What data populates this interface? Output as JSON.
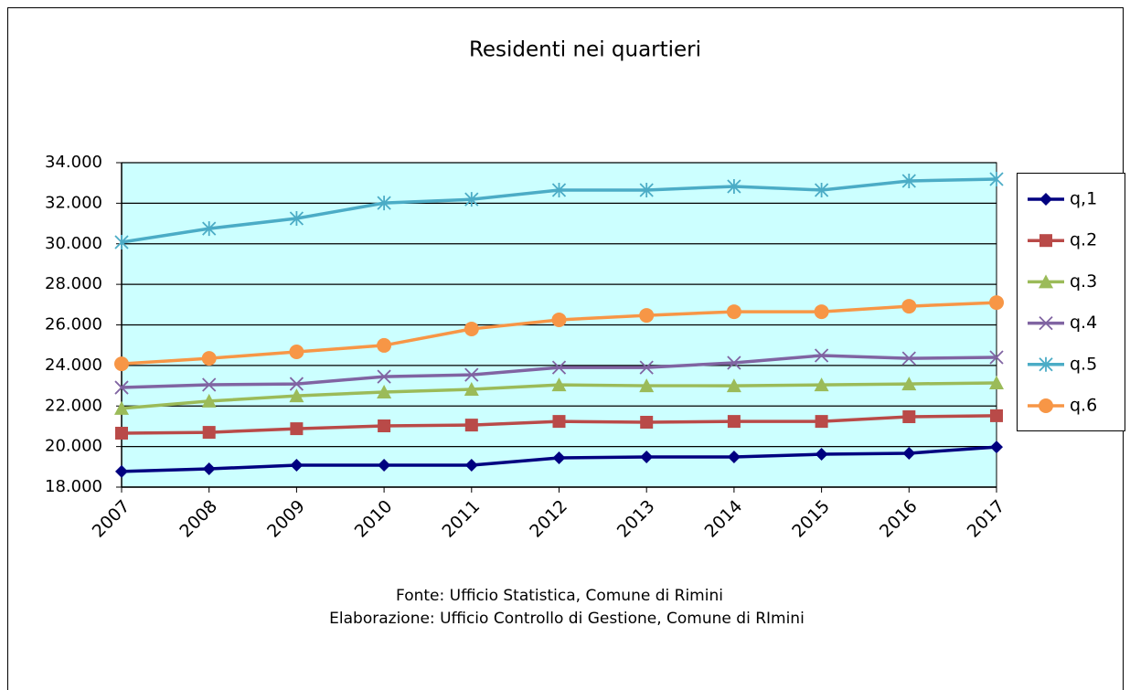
{
  "chart_data": {
    "type": "line",
    "title": "Residenti nei quartieri",
    "categories": [
      "2007",
      "2008",
      "2009",
      "2010",
      "2011",
      "2012",
      "2013",
      "2014",
      "2015",
      "2016",
      "2017"
    ],
    "series": [
      {
        "name": "q,1",
        "color": "#000080",
        "marker": "diamond",
        "values": [
          18770,
          18900,
          19080,
          19080,
          19080,
          19440,
          19490,
          19490,
          19620,
          19670,
          19980
        ]
      },
      {
        "name": "q.2",
        "color": "#b94a48",
        "marker": "square",
        "values": [
          20660,
          20700,
          20880,
          21020,
          21060,
          21240,
          21200,
          21240,
          21240,
          21470,
          21520
        ]
      },
      {
        "name": "q.3",
        "color": "#9bbb59",
        "marker": "triangle",
        "values": [
          21880,
          22240,
          22500,
          22690,
          22820,
          23040,
          23000,
          23000,
          23040,
          23090,
          23140
        ]
      },
      {
        "name": "q.4",
        "color": "#8064a2",
        "marker": "x",
        "values": [
          22910,
          23050,
          23090,
          23450,
          23540,
          23900,
          23900,
          24130,
          24490,
          24350,
          24400
        ]
      },
      {
        "name": "q.5",
        "color": "#4bacc6",
        "marker": "star",
        "values": [
          30080,
          30750,
          31250,
          32010,
          32190,
          32650,
          32650,
          32830,
          32650,
          33100,
          33190
        ]
      },
      {
        "name": "q.6",
        "color": "#f79646",
        "marker": "circle",
        "values": [
          24080,
          24350,
          24670,
          24990,
          25800,
          26250,
          26470,
          26650,
          26650,
          26920,
          27100
        ]
      }
    ],
    "ylim": [
      18000,
      34000
    ],
    "yticks": [
      {
        "value": 18000,
        "label": "18.000"
      },
      {
        "value": 20000,
        "label": "20.000"
      },
      {
        "value": 22000,
        "label": "22.000"
      },
      {
        "value": 24000,
        "label": "24.000"
      },
      {
        "value": 26000,
        "label": "26.000"
      },
      {
        "value": 28000,
        "label": "28.000"
      },
      {
        "value": 30000,
        "label": "30.000"
      },
      {
        "value": 32000,
        "label": "32.000"
      },
      {
        "value": 34000,
        "label": "34.000"
      }
    ],
    "grid": true,
    "plot_background": "#ccffff",
    "legend": "right",
    "notes": [
      "Fonte: Ufficio Statistica, Comune di Rimini",
      "Elaborazione: Ufficio Controllo di Gestione, Comune di RImini"
    ]
  }
}
